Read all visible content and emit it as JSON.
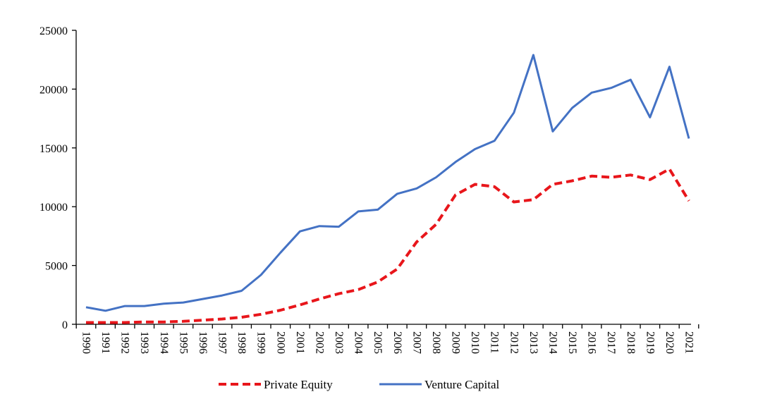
{
  "chart_data": {
    "type": "line",
    "title": "",
    "xlabel": "",
    "ylabel": "",
    "ylim": [
      0,
      25000
    ],
    "yticks": [
      0,
      5000,
      10000,
      15000,
      20000,
      25000
    ],
    "grid": false,
    "legend_placement": "bottom",
    "categories": [
      "1990",
      "1991",
      "1992",
      "1993",
      "1994",
      "1995",
      "1996",
      "1997",
      "1998",
      "1999",
      "2000",
      "2001",
      "2002",
      "2003",
      "2004",
      "2005",
      "2006",
      "2007",
      "2008",
      "2009",
      "2010",
      "2011",
      "2012",
      "2013",
      "2014",
      "2015",
      "2016",
      "2017",
      "2018",
      "2019",
      "2020",
      "2021"
    ],
    "series": [
      {
        "name": "Private Equity",
        "color": "#e8161b",
        "style": "dashed",
        "values": [
          150,
          150,
          150,
          200,
          200,
          250,
          350,
          450,
          600,
          850,
          1200,
          1650,
          2150,
          2600,
          2950,
          3600,
          4700,
          7000,
          8500,
          11000,
          11900,
          11700,
          10400,
          10600,
          11900,
          12200,
          12600,
          12500,
          12700,
          12300,
          13200,
          10500
        ]
      },
      {
        "name": "Venture Capital",
        "color": "#4472c4",
        "style": "solid",
        "values": [
          1450,
          1150,
          1550,
          1550,
          1750,
          1850,
          2150,
          2450,
          2850,
          4200,
          6100,
          7900,
          8350,
          8300,
          9600,
          9750,
          11100,
          11550,
          12500,
          13800,
          14900,
          15600,
          18000,
          22900,
          16400,
          18400,
          19700,
          20100,
          20800,
          17600,
          21900,
          15800
        ]
      }
    ]
  }
}
